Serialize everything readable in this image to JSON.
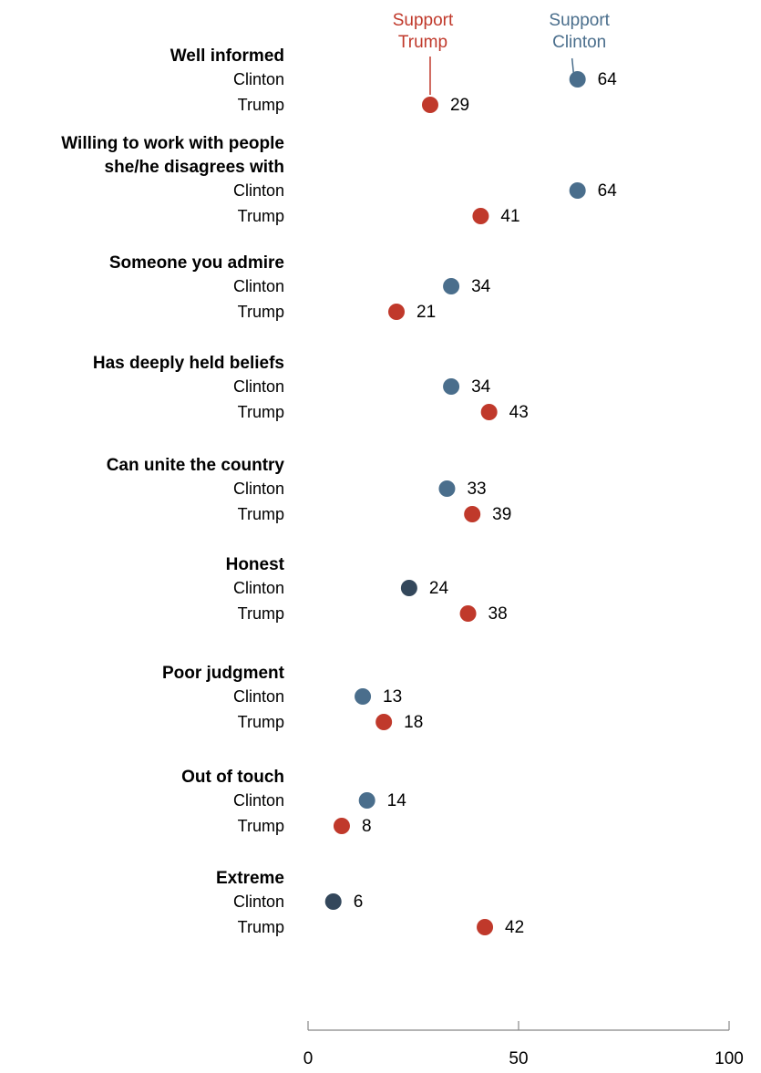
{
  "chart_data": {
    "type": "scatter",
    "title": "",
    "xlabel": "",
    "ylabel": "",
    "xlim": [
      0,
      100
    ],
    "x_ticks": [
      "0",
      "50",
      "100"
    ],
    "grid": false,
    "legend": {
      "trump": "Support\nTrump",
      "clinton": "Support\nClinton",
      "placement": "top"
    },
    "colors": {
      "trump": "#c0392b",
      "clinton": "#4a6e8c",
      "clinton_dark": "#33475b"
    },
    "categories": [
      {
        "label": "Well informed",
        "clinton_label": "Clinton",
        "trump_label": "Trump",
        "clinton": 64,
        "trump": 29
      },
      {
        "label": "Willing to work with people\nshe/he disagrees with",
        "clinton_label": "Clinton",
        "trump_label": "Trump",
        "clinton": 64,
        "trump": 41
      },
      {
        "label": "Someone you admire",
        "clinton_label": "Clinton",
        "trump_label": "Trump",
        "clinton": 34,
        "trump": 21
      },
      {
        "label": "Has deeply held beliefs",
        "clinton_label": "Clinton",
        "trump_label": "Trump",
        "clinton": 34,
        "trump": 43
      },
      {
        "label": "Can unite the country",
        "clinton_label": "Clinton",
        "trump_label": "Trump",
        "clinton": 33,
        "trump": 39
      },
      {
        "label": "Honest",
        "clinton_label": "Clinton",
        "trump_label": "Trump",
        "clinton": 24,
        "trump": 38
      },
      {
        "label": "Poor judgment",
        "clinton_label": "Clinton",
        "trump_label": "Trump",
        "clinton": 13,
        "trump": 18
      },
      {
        "label": "Out of touch",
        "clinton_label": "Clinton",
        "trump_label": "Trump",
        "clinton": 14,
        "trump": 8
      },
      {
        "label": "Extreme",
        "clinton_label": "Clinton",
        "trump_label": "Trump",
        "clinton": 6,
        "trump": 42
      }
    ]
  }
}
